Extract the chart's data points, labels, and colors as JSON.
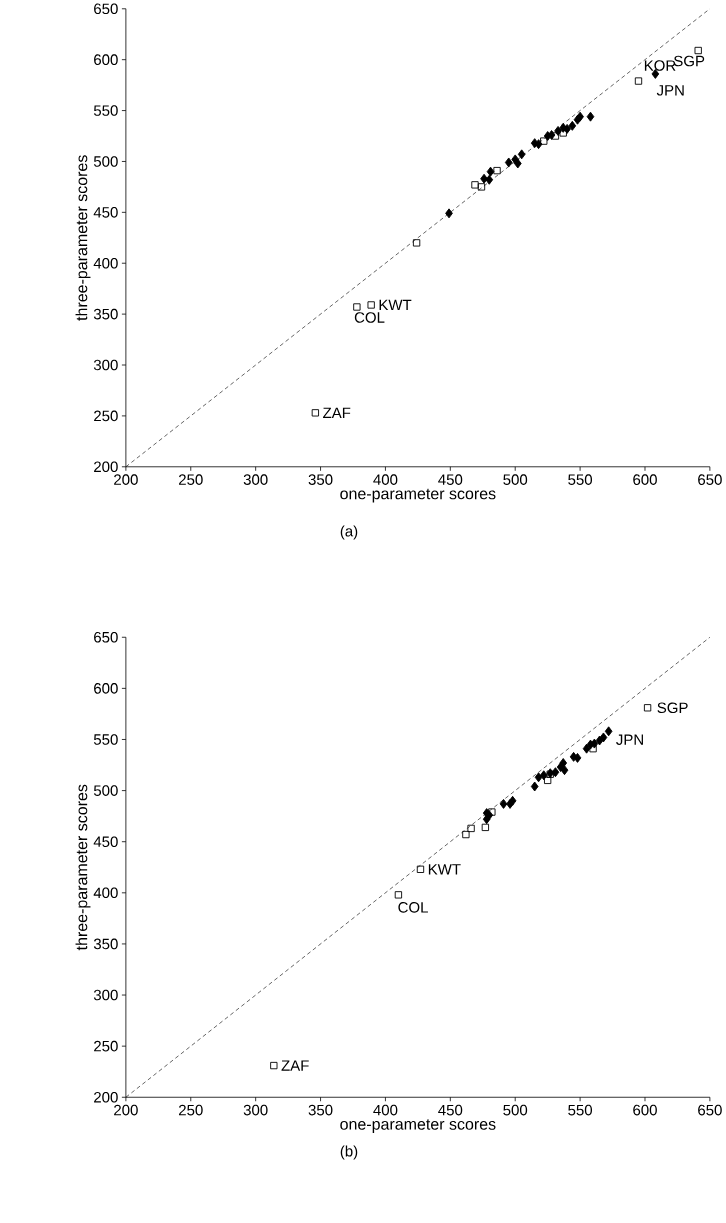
{
  "chart_data": [
    {
      "type": "scatter",
      "title": "(a)",
      "xlabel": "one-parameter scores",
      "ylabel": "three-parameter scores",
      "xlim": [
        200,
        650
      ],
      "ylim": [
        200,
        650
      ],
      "xticks": [
        200,
        250,
        300,
        350,
        400,
        450,
        500,
        550,
        600,
        650
      ],
      "yticks": [
        200,
        250,
        300,
        350,
        400,
        450,
        500,
        550,
        600,
        650
      ],
      "grid": false,
      "series": [
        {
          "type": "line",
          "color": "#000000",
          "marker": "none",
          "line_style": "dashed",
          "x": [
            200,
            650
          ],
          "values": [
            200,
            650
          ]
        },
        {
          "type": "scatter",
          "color": "#000000",
          "marker": "square",
          "x": [
            346,
            378,
            389,
            424,
            469,
            474,
            486,
            522,
            531,
            537,
            595,
            641
          ],
          "values": [
            253,
            357,
            359,
            420,
            477,
            475,
            491,
            520,
            525,
            528,
            579,
            609
          ]
        },
        {
          "type": "scatter",
          "color": "#000000",
          "marker": "diamond",
          "x": [
            449,
            476,
            480,
            481,
            495,
            500,
            502,
            505,
            515,
            518,
            525,
            528,
            533,
            537,
            540,
            544,
            548,
            550,
            558,
            608
          ],
          "values": [
            449,
            483,
            482,
            490,
            499,
            502,
            498,
            507,
            518,
            517,
            525,
            526,
            530,
            533,
            532,
            535,
            541,
            544,
            544,
            586
          ]
        }
      ],
      "annotations": [
        {
          "text": "ZAF",
          "x": 346,
          "y": 253
        },
        {
          "text": "COL",
          "x": 378,
          "y": 357
        },
        {
          "text": "KWT",
          "x": 389,
          "y": 359
        },
        {
          "text": "KOR",
          "x": 595,
          "y": 579
        },
        {
          "text": "JPN",
          "x": 608,
          "y": 586
        },
        {
          "text": "SGP",
          "x": 641,
          "y": 609
        }
      ]
    },
    {
      "type": "scatter",
      "title": "(b)",
      "xlabel": "one-parameter scores",
      "ylabel": "three-parameter scores",
      "xlim": [
        200,
        650
      ],
      "ylim": [
        200,
        650
      ],
      "xticks": [
        200,
        250,
        300,
        350,
        400,
        450,
        500,
        550,
        600,
        650
      ],
      "yticks": [
        200,
        250,
        300,
        350,
        400,
        450,
        500,
        550,
        600,
        650
      ],
      "grid": false,
      "series": [
        {
          "type": "line",
          "color": "#000000",
          "marker": "none",
          "line_style": "dashed",
          "x": [
            200,
            650
          ],
          "values": [
            200,
            650
          ]
        },
        {
          "type": "scatter",
          "color": "#000000",
          "marker": "square",
          "x": [
            314,
            410,
            427,
            462,
            466,
            477,
            482,
            525,
            527,
            560,
            602
          ],
          "values": [
            231,
            398,
            423,
            457,
            463,
            464,
            479,
            510,
            516,
            541,
            581
          ]
        },
        {
          "type": "scatter",
          "color": "#000000",
          "marker": "diamond",
          "x": [
            478,
            478,
            480,
            491,
            496,
            498,
            515,
            518,
            522,
            527,
            531,
            535,
            537,
            538,
            545,
            548,
            555,
            558,
            561,
            565,
            568,
            572
          ],
          "values": [
            472,
            478,
            476,
            487,
            487,
            490,
            504,
            513,
            515,
            517,
            518,
            523,
            527,
            520,
            533,
            532,
            541,
            545,
            546,
            549,
            552,
            558
          ]
        }
      ],
      "annotations": [
        {
          "text": "ZAF",
          "x": 314,
          "y": 231
        },
        {
          "text": "COL",
          "x": 410,
          "y": 398
        },
        {
          "text": "KWT",
          "x": 427,
          "y": 423
        },
        {
          "text": "SGP",
          "x": 602,
          "y": 581
        },
        {
          "text": "JPN",
          "x": 572,
          "y": 558
        }
      ]
    }
  ]
}
